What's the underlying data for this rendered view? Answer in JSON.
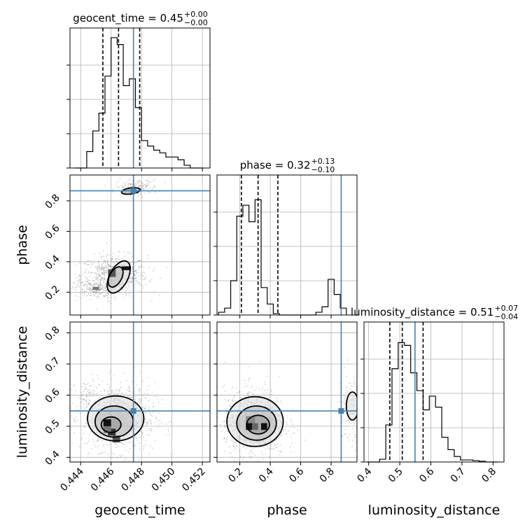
{
  "chart_data": {
    "type": "corner",
    "parameters": [
      "geocent_time",
      "phase",
      "luminosity_distance"
    ],
    "axis_labels": [
      "geocent_time",
      "phase",
      "luminosity_distance"
    ],
    "colors": {
      "truth": "#4682b4",
      "hist": "#000000",
      "grid": "#b0b0b0",
      "scatter": "#7f7f7f"
    },
    "ranges": {
      "geocent_time": [
        0.4433,
        0.4525
      ],
      "phase": [
        0.05,
        0.97
      ],
      "luminosity_distance": [
        0.385,
        0.835
      ]
    },
    "ticks": {
      "geocent_time": [
        0.444,
        0.446,
        0.448,
        0.45,
        0.452
      ],
      "phase": [
        0.2,
        0.4,
        0.6,
        0.8
      ],
      "luminosity_distance": [
        0.4,
        0.5,
        0.6,
        0.7,
        0.8
      ]
    },
    "tick_labels": {
      "geocent_time": [
        "0.444",
        "0.446",
        "0.448",
        "0.450",
        "0.452"
      ],
      "phase": [
        "0.2",
        "0.4",
        "0.6",
        "0.8"
      ],
      "luminosity_distance": [
        "0.4",
        "0.5",
        "0.6",
        "0.7",
        "0.8"
      ]
    },
    "titles": [
      {
        "param": "geocent_time",
        "prefix": "geocent_time = 0.45",
        "sup": "+0.00",
        "sub": "−0.00"
      },
      {
        "param": "phase",
        "prefix": "phase = 0.32",
        "sup": "+0.13",
        "sub": "−0.10"
      },
      {
        "param": "luminosity_distance",
        "prefix": "luminosity_distance = 0.51",
        "sup": "+0.07",
        "sub": "−0.04"
      }
    ],
    "truths": {
      "geocent_time": 0.44747,
      "phase": 0.866,
      "luminosity_distance": 0.549
    },
    "quantiles": {
      "geocent_time": [
        0.44546,
        0.44649,
        0.44788
      ],
      "phase": [
        0.21,
        0.32,
        0.45
      ],
      "luminosity_distance": [
        0.468,
        0.508,
        0.575
      ]
    },
    "histograms": {
      "geocent_time": {
        "start": 0.4436,
        "step": 0.0004,
        "counts": [
          0.0,
          0.0,
          0.12,
          0.27,
          0.4,
          0.67,
          0.95,
          0.9,
          0.6,
          0.65,
          0.44,
          0.2,
          0.16,
          0.13,
          0.11,
          0.08,
          0.08,
          0.06,
          0.02,
          0.0,
          0.0
        ]
      },
      "phase": {
        "start": 0.06,
        "step": 0.04,
        "counts": [
          0.02,
          0.05,
          0.25,
          0.72,
          0.8,
          0.68,
          0.84,
          0.2,
          0.08,
          0.01,
          0.0,
          0.0,
          0.0,
          0.0,
          0.0,
          0.0,
          0.02,
          0.06,
          0.26,
          0.15,
          0.05
        ]
      },
      "luminosity_distance": {
        "start": 0.395,
        "step": 0.02,
        "counts": [
          0.0,
          0.0,
          0.02,
          0.27,
          0.68,
          0.87,
          0.85,
          0.65,
          0.52,
          0.38,
          0.48,
          0.4,
          0.18,
          0.09,
          0.04,
          0.015,
          0.015,
          0.01,
          0.005,
          0.0,
          0.0
        ]
      }
    },
    "clusters": {
      "phase_vs_geocent_time": [
        {
          "x": 0.4462,
          "y": 0.31,
          "sx": 0.0011,
          "sy": 0.065,
          "n": 700
        },
        {
          "x": 0.445,
          "y": 0.22,
          "sx": 0.0007,
          "sy": 0.03,
          "n": 180
        },
        {
          "x": 0.4477,
          "y": 0.89,
          "sx": 0.0007,
          "sy": 0.025,
          "n": 160
        }
      ],
      "luminosity_distance_vs_geocent_time": [
        {
          "x": 0.4465,
          "y": 0.53,
          "sx": 0.0012,
          "sy": 0.055,
          "n": 900
        },
        {
          "x": 0.4443,
          "y": 0.6,
          "sx": 0.0003,
          "sy": 0.02,
          "n": 60
        }
      ],
      "luminosity_distance_vs_phase": [
        {
          "x": 0.3,
          "y": 0.51,
          "sx": 0.1,
          "sy": 0.055,
          "n": 900
        },
        {
          "x": 0.93,
          "y": 0.56,
          "sx": 0.04,
          "sy": 0.06,
          "n": 130
        }
      ]
    },
    "contours": {
      "phase_vs_geocent_time": [
        {
          "cx": 0.4465,
          "cy": 0.3,
          "rx": 0.00115,
          "ry": 0.06,
          "rot": -62
        },
        {
          "cx": 0.4463,
          "cy": 0.3,
          "rx": 0.00072,
          "ry": 0.04,
          "rot": -62
        },
        {
          "cx": 0.4473,
          "cy": 0.865,
          "rx": 0.00062,
          "ry": 0.02,
          "rot": -8
        }
      ],
      "luminosity_distance_vs_geocent_time": [
        {
          "cx": 0.4463,
          "cy": 0.525,
          "rx": 0.00185,
          "ry": 0.072,
          "rot": 0
        },
        {
          "cx": 0.4462,
          "cy": 0.515,
          "rx": 0.00125,
          "ry": 0.05,
          "rot": 0
        },
        {
          "cx": 0.446,
          "cy": 0.505,
          "rx": 0.00065,
          "ry": 0.025,
          "rot": 0
        }
      ],
      "luminosity_distance_vs_phase": [
        {
          "cx": 0.3,
          "cy": 0.515,
          "rx": 0.185,
          "ry": 0.08,
          "rot": 0
        },
        {
          "cx": 0.31,
          "cy": 0.51,
          "rx": 0.13,
          "ry": 0.055,
          "rot": 0
        },
        {
          "cx": 0.32,
          "cy": 0.505,
          "rx": 0.075,
          "ry": 0.03,
          "rot": 0
        },
        {
          "cx": 0.94,
          "cy": 0.565,
          "rx": 0.04,
          "ry": 0.045,
          "rot": 0
        }
      ]
    },
    "dark_cells": {
      "phase_vs_geocent_time": [
        {
          "x": 0.4467,
          "y": 0.345,
          "w": 0.0006,
          "h": 0.025,
          "shade": "#111111"
        },
        {
          "x": 0.4458,
          "y": 0.3,
          "w": 0.0005,
          "h": 0.05,
          "shade": "#555555"
        },
        {
          "x": 0.4448,
          "y": 0.215,
          "w": 0.0004,
          "h": 0.02,
          "shade": "#777777"
        }
      ],
      "luminosity_distance_vs_geocent_time": [
        {
          "x": 0.4455,
          "y": 0.5,
          "w": 0.0005,
          "h": 0.022,
          "shade": "#111111"
        },
        {
          "x": 0.4458,
          "y": 0.47,
          "w": 0.0005,
          "h": 0.022,
          "shade": "#333333"
        },
        {
          "x": 0.4461,
          "y": 0.448,
          "w": 0.0005,
          "h": 0.022,
          "shade": "#555555"
        },
        {
          "x": 0.4455,
          "y": 0.478,
          "w": 0.0005,
          "h": 0.022,
          "shade": "#777777"
        }
      ],
      "luminosity_distance_vs_phase": [
        {
          "x": 0.24,
          "y": 0.488,
          "w": 0.04,
          "h": 0.022,
          "shade": "#111111"
        },
        {
          "x": 0.34,
          "y": 0.488,
          "w": 0.04,
          "h": 0.022,
          "shade": "#111111"
        },
        {
          "x": 0.28,
          "y": 0.488,
          "w": 0.04,
          "h": 0.022,
          "shade": "#666666"
        },
        {
          "x": 0.24,
          "y": 0.51,
          "w": 0.06,
          "h": 0.022,
          "shade": "#888888"
        }
      ]
    }
  }
}
